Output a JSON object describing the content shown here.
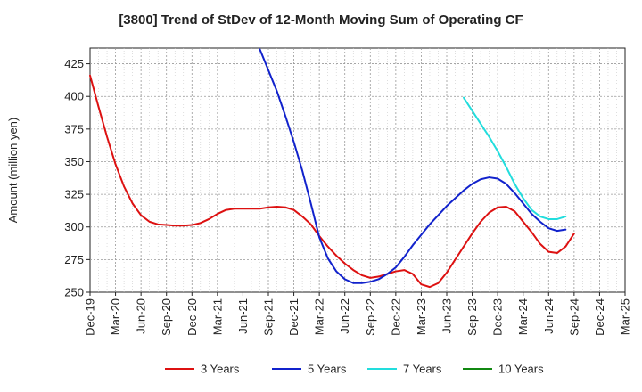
{
  "chart_data": {
    "type": "line",
    "title": "[3800]  Trend of StDev of 12-Month Moving Sum of Operating CF",
    "ylabel": "Amount (million yen)",
    "xlabel": "",
    "ylim": [
      250,
      437
    ],
    "yticks": [
      250,
      275,
      300,
      325,
      350,
      375,
      400,
      425
    ],
    "x_start": "2019-12",
    "x_end": "2025-03",
    "xtick_labels": [
      "Dec-19",
      "Mar-20",
      "Jun-20",
      "Sep-20",
      "Dec-20",
      "Mar-21",
      "Jun-21",
      "Sep-21",
      "Dec-21",
      "Mar-22",
      "Jun-22",
      "Sep-22",
      "Dec-22",
      "Mar-23",
      "Jun-23",
      "Sep-23",
      "Dec-23",
      "Mar-24",
      "Jun-24",
      "Sep-24",
      "Dec-24",
      "Mar-25"
    ],
    "grid": true,
    "legend_position": "bottom",
    "series": [
      {
        "name": "3 Years",
        "color": "#dd1111",
        "start": "2019-12",
        "values": [
          416,
          392,
          369,
          348,
          331,
          318,
          309,
          304,
          302,
          301.5,
          301,
          301,
          301.5,
          303,
          306,
          310,
          313,
          314,
          314,
          314,
          314,
          315,
          315.5,
          315,
          313,
          308,
          302,
          293,
          285,
          278,
          272,
          267,
          263,
          261,
          262,
          264,
          266,
          267,
          264,
          256,
          254,
          257,
          265,
          275,
          285,
          295,
          304,
          311,
          315,
          315.5,
          312,
          304,
          296,
          287,
          281,
          280,
          285,
          295
        ]
      },
      {
        "name": "5 Years",
        "color": "#1122cc",
        "start": "2021-08",
        "values": [
          436,
          420,
          404,
          385,
          365,
          343,
          318,
          292,
          276,
          266,
          260,
          257,
          257,
          258,
          260,
          264,
          269,
          277,
          286,
          294,
          302,
          309,
          316,
          322,
          328,
          333,
          336.5,
          338,
          337,
          333,
          326,
          318,
          310,
          304,
          299,
          297,
          298
        ]
      },
      {
        "name": "7 Years",
        "color": "#22dddd",
        "start": "2023-08",
        "values": [
          399,
          389,
          379,
          369,
          358,
          346,
          333,
          322,
          313,
          308,
          306,
          306,
          308
        ]
      },
      {
        "name": "10 Years",
        "color": "#118811",
        "start": "2024-09",
        "values": []
      }
    ]
  }
}
